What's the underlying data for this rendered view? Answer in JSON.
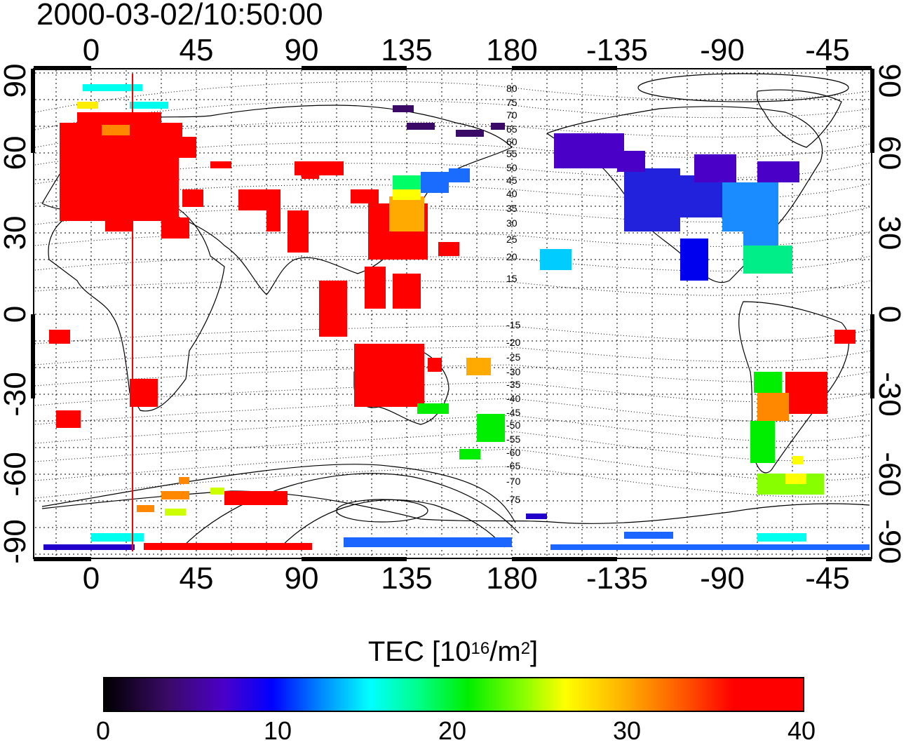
{
  "title": "2000-03-02/10:50:00",
  "axes": {
    "lon_ticks": [
      "0",
      "45",
      "90",
      "135",
      "180",
      "-135",
      "-90",
      "-45"
    ],
    "lat_ticks": [
      "90",
      "60",
      "30",
      "0",
      "-30",
      "-60",
      "-90"
    ]
  },
  "contour_labels": {
    "north": [
      "80",
      "75",
      "70",
      "65",
      "60",
      "55",
      "50",
      "45",
      "40",
      "35",
      "30",
      "25",
      "20",
      "15"
    ],
    "south": [
      "-15",
      "-20",
      "-25",
      "-30",
      "-35",
      "-40",
      "-45",
      "-50",
      "-55",
      "-60",
      "-65",
      "-70",
      "-75"
    ]
  },
  "colorbar": {
    "title_prefix": "TEC  [10",
    "title_sup1": "16",
    "title_mid": "/m",
    "title_sup2": "2",
    "title_suffix": "]",
    "min": 0,
    "max": 40,
    "tick_labels": [
      "0",
      "10",
      "20",
      "30",
      "40"
    ]
  },
  "colors": {
    "high_tec": "#ff0000",
    "low_tec": "#3a0a66",
    "terminator_line": "#ff0000"
  }
}
